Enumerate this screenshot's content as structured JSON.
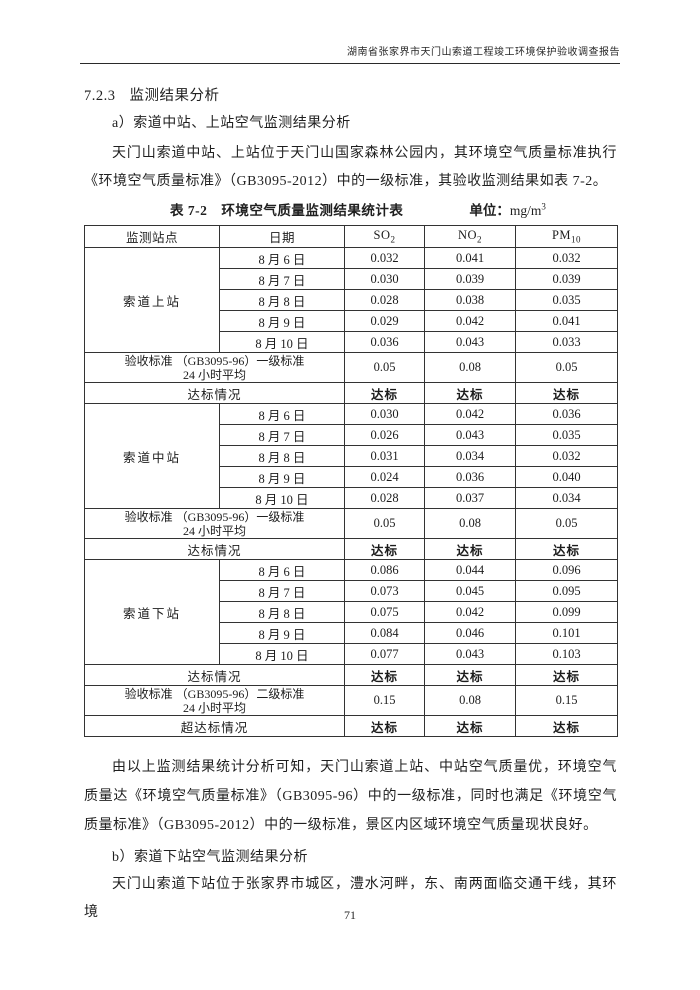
{
  "header": {
    "title": "湖南省张家界市天门山索道工程竣工环境保护验收调查报告"
  },
  "section": {
    "number": "7.2.3",
    "title": "监测结果分析"
  },
  "body": {
    "sub_a": "a）索道中站、上站空气监测结果分析",
    "para_a": "天门山索道中站、上站位于天门山国家森林公园内，其环境空气质量标准执行《环境空气质量标准》（GB3095-2012）中的一级标准，其验收监测结果如表 7-2。",
    "para_b": "由以上监测结果统计分析可知，天门山索道上站、中站空气质量优，环境空气质量达《环境空气质量标准》（GB3095-96）中的一级标准，同时也满足《环境空气质量标准》（GB3095-2012）中的一级标准，景区内区域环境空气质量现状良好。",
    "sub_b": "b）索道下站空气监测结果分析",
    "para_c": "天门山索道下站位于张家界市城区，澧水河畔，东、南两面临交通干线，其环境"
  },
  "table": {
    "caption": "表 7-2　环境空气质量监测结果统计表",
    "unit": {
      "label": "单位：",
      "base": "mg/m",
      "sup": "3"
    },
    "header": {
      "station": "监测站点",
      "date": "日期",
      "cols": [
        {
          "base": "SO",
          "sub": "2"
        },
        {
          "base": "NO",
          "sub": "2"
        },
        {
          "base": "PM",
          "sub": "10"
        }
      ]
    },
    "groups": [
      {
        "station": "索道上站",
        "dates": [
          {
            "label": "8 月 6 日",
            "values": [
              "0.032",
              "0.041",
              "0.032"
            ]
          },
          {
            "label": "8 月 7 日",
            "values": [
              "0.030",
              "0.039",
              "0.039"
            ]
          },
          {
            "label": "8 月 8 日",
            "values": [
              "0.028",
              "0.038",
              "0.035"
            ]
          },
          {
            "label": "8 月 9 日",
            "values": [
              "0.029",
              "0.042",
              "0.041"
            ]
          },
          {
            "label": "8 月 10 日",
            "values": [
              "0.036",
              "0.043",
              "0.033"
            ]
          }
        ],
        "after": [
          {
            "type": "standard",
            "line1": "验收标准 （GB3095-96）一级标准",
            "line2": "24 小时平均",
            "values": [
              "0.05",
              "0.08",
              "0.05"
            ]
          },
          {
            "type": "compliance",
            "label": "达标情况",
            "values": [
              "达标",
              "达标",
              "达标"
            ]
          }
        ]
      },
      {
        "station": "索道中站",
        "dates": [
          {
            "label": "8 月 6 日",
            "values": [
              "0.030",
              "0.042",
              "0.036"
            ]
          },
          {
            "label": "8 月 7 日",
            "values": [
              "0.026",
              "0.043",
              "0.035"
            ]
          },
          {
            "label": "8 月 8 日",
            "values": [
              "0.031",
              "0.034",
              "0.032"
            ]
          },
          {
            "label": "8 月 9 日",
            "values": [
              "0.024",
              "0.036",
              "0.040"
            ]
          },
          {
            "label": "8 月 10 日",
            "values": [
              "0.028",
              "0.037",
              "0.034"
            ]
          }
        ],
        "after": [
          {
            "type": "standard",
            "line1": "验收标准 （GB3095-96）一级标准",
            "line2": "24 小时平均",
            "values": [
              "0.05",
              "0.08",
              "0.05"
            ]
          },
          {
            "type": "compliance",
            "label": "达标情况",
            "values": [
              "达标",
              "达标",
              "达标"
            ]
          }
        ]
      },
      {
        "station": "索道下站",
        "dates": [
          {
            "label": "8 月 6 日",
            "values": [
              "0.086",
              "0.044",
              "0.096"
            ]
          },
          {
            "label": "8 月 7 日",
            "values": [
              "0.073",
              "0.045",
              "0.095"
            ]
          },
          {
            "label": "8 月 8 日",
            "values": [
              "0.075",
              "0.042",
              "0.099"
            ]
          },
          {
            "label": "8 月 9 日",
            "values": [
              "0.084",
              "0.046",
              "0.101"
            ]
          },
          {
            "label": "8 月 10 日",
            "values": [
              "0.077",
              "0.043",
              "0.103"
            ]
          }
        ],
        "after": [
          {
            "type": "compliance",
            "label": "达标情况",
            "values": [
              "达标",
              "达标",
              "达标"
            ]
          },
          {
            "type": "standard",
            "line1": "验收标准 （GB3095-96）二级标准",
            "line2": "24 小时平均",
            "values": [
              "0.15",
              "0.08",
              "0.15"
            ]
          },
          {
            "type": "compliance",
            "label": "超达标情况",
            "values": [
              "达标",
              "达标",
              "达标"
            ]
          }
        ]
      }
    ]
  },
  "footer": {
    "page_number": "71"
  }
}
